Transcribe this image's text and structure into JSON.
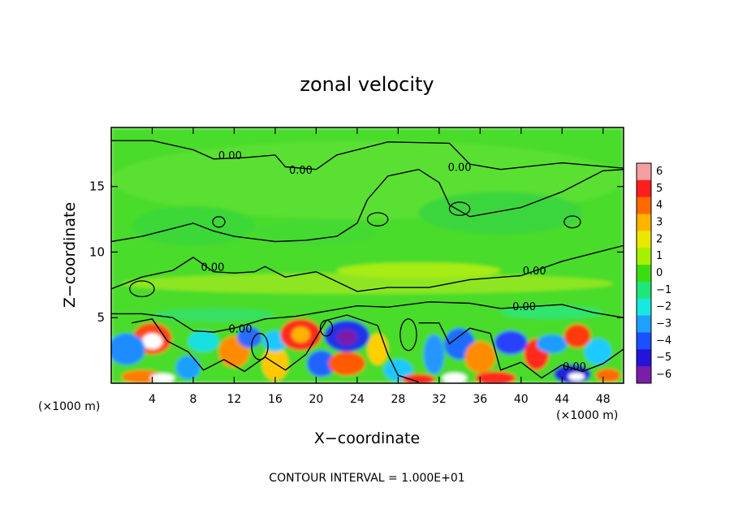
{
  "chart_data": {
    "type": "heatmap",
    "title": "zonal velocity",
    "xlabel": "X−coordinate",
    "ylabel": "Z−coordinate",
    "x_unit_left": "(×1000 m)",
    "x_unit_right": "(×1000 m)",
    "footer": "CONTOUR INTERVAL = 1.000E+01",
    "xlim": [
      0,
      50
    ],
    "ylim": [
      0,
      19.5
    ],
    "x_ticks": [
      4,
      8,
      12,
      16,
      20,
      24,
      28,
      32,
      36,
      40,
      44,
      48
    ],
    "x_tick_labels": [
      "4",
      "8",
      "12",
      "16",
      "20",
      "24",
      "28",
      "32",
      "36",
      "40",
      "44",
      "48"
    ],
    "y_ticks": [
      5,
      10,
      15
    ],
    "y_tick_labels": [
      "5",
      "10",
      "15"
    ],
    "colorbar": {
      "values": [
        6,
        5,
        4,
        3,
        2,
        1,
        0,
        -1,
        -2,
        -3,
        -4,
        -5,
        -6
      ],
      "labels": [
        "6",
        "5",
        "4",
        "3",
        "2",
        "1",
        "0",
        "−1",
        "−2",
        "−3",
        "−4",
        "−5",
        "−6"
      ],
      "colors": [
        "#f4a0a0",
        "#ff1e1e",
        "#ff6a00",
        "#ffb400",
        "#e8e800",
        "#a8f000",
        "#3cdc14",
        "#1ee678",
        "#18e8e0",
        "#1ea0ff",
        "#1a50ff",
        "#2414d8",
        "#7a1ea8"
      ]
    },
    "contour_labels": [
      {
        "text": "0.00",
        "x": 11.6,
        "y": 17.3
      },
      {
        "text": "0.00",
        "x": 18.5,
        "y": 16.2
      },
      {
        "text": "0.00",
        "x": 34.0,
        "y": 16.4
      },
      {
        "text": "0.00",
        "x": 9.9,
        "y": 8.8
      },
      {
        "text": "0.00",
        "x": 41.3,
        "y": 8.5
      },
      {
        "text": "0.00",
        "x": 40.3,
        "y": 5.8
      },
      {
        "text": "0.00",
        "x": 12.6,
        "y": 4.1
      },
      {
        "text": "0.00",
        "x": 45.2,
        "y": 1.2
      }
    ]
  }
}
